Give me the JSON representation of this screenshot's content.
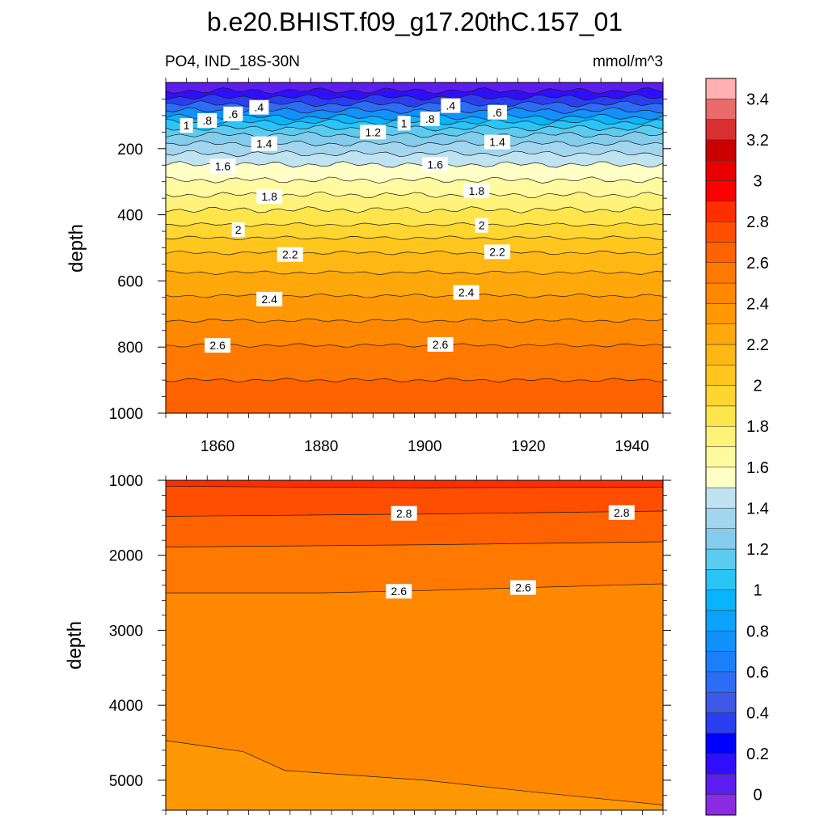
{
  "chart_data": {
    "type": "contour",
    "title": "b.e20.BHIST.f09_g17.20thC.157_01",
    "subtitle_left": "PO4, IND_18S-30N",
    "subtitle_right": "mmol/m^3",
    "ylabel": "depth",
    "x_range": [
      1850,
      1946
    ],
    "x_ticks": [
      "1860",
      "1880",
      "1900",
      "1920",
      "1940"
    ],
    "upper_panel": {
      "ylim": [
        0,
        1000
      ],
      "y_ticks": [
        "200",
        "400",
        "600",
        "800",
        "1000"
      ],
      "contour_depths": [
        {
          "level": 0.2,
          "depth": 25
        },
        {
          "level": 0.4,
          "depth": 45
        },
        {
          "level": 0.6,
          "depth": 65
        },
        {
          "level": 0.8,
          "depth": 85
        },
        {
          "level": 1.0,
          "depth": 105
        },
        {
          "level": 1.1,
          "depth": 120
        },
        {
          "level": 1.2,
          "depth": 138
        },
        {
          "level": 1.3,
          "depth": 158
        },
        {
          "level": 1.4,
          "depth": 185
        },
        {
          "level": 1.5,
          "depth": 215
        },
        {
          "level": 1.6,
          "depth": 248
        },
        {
          "level": 1.7,
          "depth": 295
        },
        {
          "level": 1.8,
          "depth": 340
        },
        {
          "level": 1.9,
          "depth": 385
        },
        {
          "level": 2.0,
          "depth": 430
        },
        {
          "level": 2.1,
          "depth": 470
        },
        {
          "level": 2.2,
          "depth": 515
        },
        {
          "level": 2.3,
          "depth": 575
        },
        {
          "level": 2.4,
          "depth": 645
        },
        {
          "level": 2.5,
          "depth": 720
        },
        {
          "level": 2.6,
          "depth": 795
        },
        {
          "level": 2.7,
          "depth": 900
        }
      ],
      "contour_labels": [
        {
          "text": "1",
          "year": 1854,
          "depth": 130
        },
        {
          "text": ".8",
          "year": 1858,
          "depth": 115
        },
        {
          "text": ".6",
          "year": 1863,
          "depth": 95
        },
        {
          "text": ".4",
          "year": 1868,
          "depth": 75
        },
        {
          "text": "1.6",
          "year": 1861,
          "depth": 253
        },
        {
          "text": "1.4",
          "year": 1869,
          "depth": 185
        },
        {
          "text": "1.8",
          "year": 1870,
          "depth": 345
        },
        {
          "text": "2",
          "year": 1864,
          "depth": 445
        },
        {
          "text": "2.2",
          "year": 1874,
          "depth": 520
        },
        {
          "text": "2.4",
          "year": 1870,
          "depth": 655
        },
        {
          "text": "2.6",
          "year": 1860,
          "depth": 795
        },
        {
          "text": ".4",
          "year": 1905,
          "depth": 70
        },
        {
          "text": ".6",
          "year": 1914,
          "depth": 90
        },
        {
          "text": ".8",
          "year": 1901,
          "depth": 110
        },
        {
          "text": "1",
          "year": 1896,
          "depth": 123
        },
        {
          "text": "1.2",
          "year": 1890,
          "depth": 150
        },
        {
          "text": "1.4",
          "year": 1914,
          "depth": 180
        },
        {
          "text": "1.6",
          "year": 1902,
          "depth": 248
        },
        {
          "text": "1.8",
          "year": 1910,
          "depth": 328
        },
        {
          "text": "2",
          "year": 1911,
          "depth": 432
        },
        {
          "text": "2.2",
          "year": 1914,
          "depth": 512
        },
        {
          "text": "2.4",
          "year": 1908,
          "depth": 635
        },
        {
          "text": "2.6",
          "year": 1903,
          "depth": 792
        }
      ]
    },
    "lower_panel": {
      "ylim": [
        1000,
        5400
      ],
      "y_ticks": [
        "1000",
        "2000",
        "3000",
        "4000",
        "5000"
      ],
      "contour_lines": [
        {
          "level": 2.9,
          "points": [
            [
              1850,
              1080
            ],
            [
              1900,
              1100
            ],
            [
              1946,
              1090
            ]
          ]
        },
        {
          "level": 2.8,
          "points": [
            [
              1850,
              1480
            ],
            [
              1900,
              1450
            ],
            [
              1946,
              1410
            ]
          ]
        },
        {
          "level": 2.7,
          "points": [
            [
              1850,
              1890
            ],
            [
              1900,
              1860
            ],
            [
              1946,
              1820
            ]
          ]
        },
        {
          "level": 2.6,
          "points": [
            [
              1850,
              2500
            ],
            [
              1880,
              2500
            ],
            [
              1900,
              2470
            ],
            [
              1920,
              2430
            ],
            [
              1946,
              2380
            ]
          ]
        },
        {
          "level": 2.5,
          "points": [
            [
              1850,
              4470
            ],
            [
              1865,
              4620
            ],
            [
              1873,
              4870
            ],
            [
              1900,
              5000
            ],
            [
              1920,
              5150
            ],
            [
              1946,
              5330
            ]
          ]
        }
      ],
      "contour_labels": [
        {
          "text": "2.8",
          "year": 1896,
          "depth": 1440
        },
        {
          "text": "2.8",
          "year": 1938,
          "depth": 1430
        },
        {
          "text": "2.6",
          "year": 1895,
          "depth": 2480
        },
        {
          "text": "2.6",
          "year": 1919,
          "depth": 2430
        }
      ]
    },
    "colorbar": {
      "ticks": [
        "0",
        "0.2",
        "0.4",
        "0.6",
        "0.8",
        "1",
        "1.2",
        "1.4",
        "1.6",
        "1.8",
        "2",
        "2.2",
        "2.4",
        "2.6",
        "2.8",
        "3",
        "3.2",
        "3.4"
      ],
      "colors": [
        "#8a2be2",
        "#5e1df0",
        "#2f0ff9",
        "#0000ff",
        "#2a3ef0",
        "#3c59e8",
        "#2b6df5",
        "#1a7ff8",
        "#1290fb",
        "#0aa3fd",
        "#0ab4fb",
        "#2bc4f7",
        "#5ccbf0",
        "#83ccec",
        "#a2d6ef",
        "#c0e3f2",
        "#ffffc6",
        "#fffaa0",
        "#fff27a",
        "#ffe54c",
        "#ffd530",
        "#ffc61e",
        "#ffb714",
        "#ffa80c",
        "#ff9804",
        "#ff8800",
        "#ff7800",
        "#ff6200",
        "#ff4e00",
        "#ff2e00",
        "#ff0000",
        "#e80000",
        "#cc0000",
        "#d83030",
        "#ea6b6b",
        "#ffb0b0"
      ]
    }
  }
}
